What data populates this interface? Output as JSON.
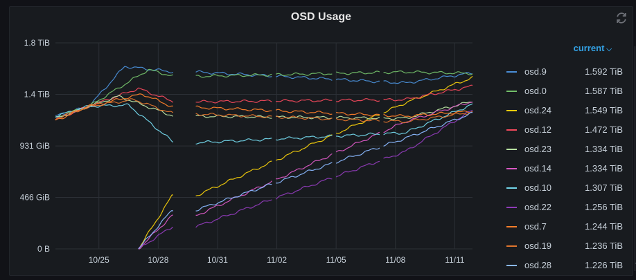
{
  "panel": {
    "title": "OSD Usage"
  },
  "icons": {
    "refresh": "refresh-icon",
    "chevron": "chevron-down-icon"
  },
  "legend": {
    "header": "current",
    "rows": [
      {
        "name": "osd.9",
        "value": "1.592 TiB",
        "color": "#4a8fd8"
      },
      {
        "name": "osd.0",
        "value": "1.587 TiB",
        "color": "#73bf69"
      },
      {
        "name": "osd.24",
        "value": "1.549 TiB",
        "color": "#f2cc0c"
      },
      {
        "name": "osd.12",
        "value": "1.472 TiB",
        "color": "#f2495c"
      },
      {
        "name": "osd.23",
        "value": "1.334 TiB",
        "color": "#b9e3a2"
      },
      {
        "name": "osd.14",
        "value": "1.334 TiB",
        "color": "#d958c4"
      },
      {
        "name": "osd.10",
        "value": "1.307 TiB",
        "color": "#73d7eb"
      },
      {
        "name": "osd.22",
        "value": "1.256 TiB",
        "color": "#8f3bb8"
      },
      {
        "name": "osd.7",
        "value": "1.244 TiB",
        "color": "#ff7f2a"
      },
      {
        "name": "osd.19",
        "value": "1.236 TiB",
        "color": "#e0752d"
      },
      {
        "name": "osd.28",
        "value": "1.226 TiB",
        "color": "#8ab8ff"
      }
    ]
  },
  "chart_data": {
    "type": "line",
    "title": "OSD Usage",
    "y_ticks": [
      "0 B",
      "466 GiB",
      "931 GiB",
      "1.4 TiB",
      "1.8 TiB"
    ],
    "y_tick_values": [
      0,
      466,
      931,
      1397,
      1863
    ],
    "x_ticks": [
      "10/25",
      "10/28",
      "10/31",
      "11/02",
      "11/05",
      "11/08",
      "11/11"
    ],
    "x_tick_values": [
      25,
      28,
      31,
      34,
      37,
      40,
      43
    ],
    "xlim": [
      22.8,
      43.9
    ],
    "ylim": [
      0,
      1863
    ],
    "grid": true,
    "gaps": [
      [
        28.8,
        29.9
      ],
      [
        33.8,
        33.95
      ],
      [
        36.8,
        36.95
      ],
      [
        39.2,
        39.35
      ]
    ],
    "series": [
      {
        "name": "osd.9",
        "color": "#4a8fd8",
        "start": 22.8,
        "start_value": 1200,
        "peak_day": 26.3,
        "peak_value": 1650,
        "day29": 1600,
        "dip_day": 40.5,
        "dip_value": 1500,
        "end_value": 1592
      },
      {
        "name": "osd.0",
        "color": "#73bf69",
        "start": 22.8,
        "start_value": 1190,
        "peak_day": 27.5,
        "peak_value": 1620,
        "day29": 1560,
        "dip_day": 40.5,
        "dip_value": 1600,
        "end_value": 1587
      },
      {
        "name": "osd.24",
        "color": "#f2cc0c",
        "start": 27.0,
        "start_value": 0,
        "peak_day": 28.7,
        "peak_value": 480,
        "day29": 480,
        "dip_day": 40.5,
        "dip_value": 1320,
        "end_value": 1549
      },
      {
        "name": "osd.12",
        "color": "#f2495c",
        "start": 22.8,
        "start_value": 1170,
        "peak_day": 27.0,
        "peak_value": 1450,
        "day29": 1330,
        "dip_day": 40.5,
        "dip_value": 1350,
        "end_value": 1472
      },
      {
        "name": "osd.23",
        "color": "#b9e3a2",
        "start": 22.8,
        "start_value": 1180,
        "peak_day": 26.0,
        "peak_value": 1380,
        "day29": 1200,
        "dip_day": 40.5,
        "dip_value": 1180,
        "end_value": 1334
      },
      {
        "name": "osd.14",
        "color": "#d958c4",
        "start": 27.0,
        "start_value": 0,
        "peak_day": 28.7,
        "peak_value": 300,
        "day29": 300,
        "dip_day": 40.5,
        "dip_value": 1150,
        "end_value": 1334
      },
      {
        "name": "osd.10",
        "color": "#73d7eb",
        "start": 22.8,
        "start_value": 1200,
        "peak_day": 26.5,
        "peak_value": 1300,
        "day29": 960,
        "dip_day": 40.5,
        "dip_value": 1050,
        "end_value": 1307
      },
      {
        "name": "osd.22",
        "color": "#8f3bb8",
        "start": 27.0,
        "start_value": 0,
        "peak_day": 28.7,
        "peak_value": 200,
        "day29": 200,
        "dip_day": 40.5,
        "dip_value": 880,
        "end_value": 1256
      },
      {
        "name": "osd.7",
        "color": "#ff7f2a",
        "start": 22.8,
        "start_value": 1160,
        "peak_day": 27.2,
        "peak_value": 1400,
        "day29": 1280,
        "dip_day": 40.5,
        "dip_value": 1200,
        "end_value": 1244
      },
      {
        "name": "osd.19",
        "color": "#e0752d",
        "start": 22.8,
        "start_value": 1175,
        "peak_day": 26.8,
        "peak_value": 1350,
        "day29": 1220,
        "dip_day": 40.5,
        "dip_value": 1150,
        "end_value": 1236
      },
      {
        "name": "osd.28",
        "color": "#8ab8ff",
        "start": 27.0,
        "start_value": 0,
        "peak_day": 28.7,
        "peak_value": 350,
        "day29": 350,
        "dip_day": 40.5,
        "dip_value": 1000,
        "end_value": 1226
      }
    ]
  }
}
